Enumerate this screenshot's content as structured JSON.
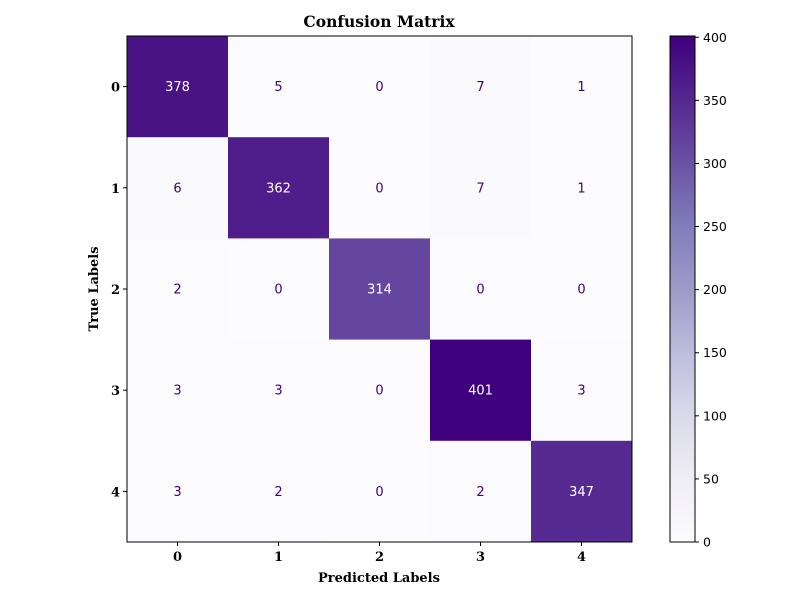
{
  "chart_data": {
    "type": "heatmap",
    "title": "Confusion Matrix",
    "xlabel": "Predicted Labels",
    "ylabel": "True Labels",
    "x_categories": [
      "0",
      "1",
      "2",
      "3",
      "4"
    ],
    "y_categories": [
      "0",
      "1",
      "2",
      "3",
      "4"
    ],
    "matrix": [
      [
        378,
        5,
        0,
        7,
        1
      ],
      [
        6,
        362,
        0,
        7,
        1
      ],
      [
        2,
        0,
        314,
        0,
        0
      ],
      [
        3,
        3,
        0,
        401,
        3
      ],
      [
        3,
        2,
        0,
        2,
        347
      ]
    ],
    "colormap": "Purples",
    "colorbar": {
      "min": 0,
      "max": 401,
      "ticks": [
        0,
        50,
        100,
        150,
        200,
        250,
        300,
        350,
        400
      ]
    },
    "grid": false
  },
  "colors": {
    "low_text": "#3f007d",
    "high_text": "#ffffff",
    "colormap_stops": [
      "#fcfbfd",
      "#efedf5",
      "#dadaeb",
      "#bcbddc",
      "#9e9ac8",
      "#807dba",
      "#6a51a3",
      "#54278f",
      "#3f007d"
    ]
  }
}
